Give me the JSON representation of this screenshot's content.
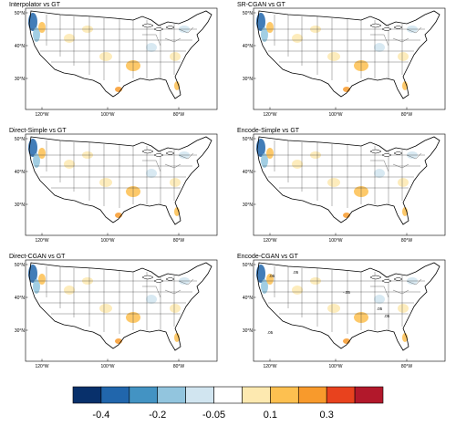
{
  "panels": [
    {
      "title": "Interpolator vs GT"
    },
    {
      "title": "SR-CGAN vs GT"
    },
    {
      "title": "Direct-Simple vs GT"
    },
    {
      "title": "Encode-Simple vs GT"
    },
    {
      "title": "Direct-CGAN vs GT"
    },
    {
      "title": "Encode-CGAN vs GT"
    }
  ],
  "axes": {
    "lat_labels": [
      "50°N",
      "40°N",
      "30°N"
    ],
    "lon_labels": [
      "120°W",
      "100°W",
      "80°W"
    ]
  },
  "contour_labels": [
    ".05",
    ".05",
    "-.05",
    ".05",
    ".05",
    ".05"
  ],
  "colorbar": {
    "colors": [
      "#08306b",
      "#2166ac",
      "#4393c3",
      "#92c5de",
      "#d1e5f0",
      "#ffffff",
      "#fde9b0",
      "#fdc050",
      "#f89a2c",
      "#e8421e",
      "#b2182b"
    ],
    "tick_labels": [
      "-0.4",
      "-0.2",
      "-0.05",
      "0.1",
      "0.3"
    ]
  }
}
